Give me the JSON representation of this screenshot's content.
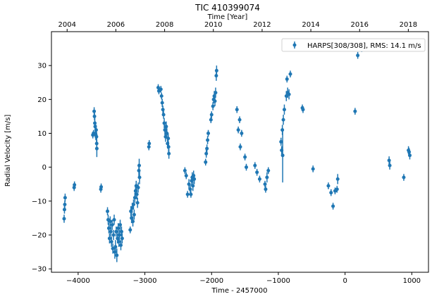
{
  "chart_data": {
    "type": "scatter",
    "title": "TIC 410399074",
    "xlabel": "Time - 2457000",
    "ylabel": "Radial Velocity [m/s]",
    "top_xlabel": "Time [Year]",
    "xlim": [
      -4400,
      1250
    ],
    "ylim": [
      -31,
      40
    ],
    "x_ticks": [
      -4000,
      -3000,
      -2000,
      -1000,
      0,
      1000
    ],
    "x_tick_labels": [
      "−4000",
      "−3000",
      "−2000",
      "−1000",
      "0",
      "1000"
    ],
    "y_ticks": [
      -30,
      -20,
      -10,
      0,
      10,
      20,
      30
    ],
    "y_tick_labels": [
      "−30",
      "−20",
      "−10",
      "0",
      "10",
      "20",
      "30"
    ],
    "top_ticks": [
      -4165,
      -3435,
      -2704,
      -1974,
      -1243,
      -513,
      218,
      948
    ],
    "top_tick_labels": [
      "2004",
      "2006",
      "2008",
      "2010",
      "2012",
      "2014",
      "2016",
      "2018"
    ],
    "legend": {
      "label": "HARPS[308/308], RMS:      14.1 m/s",
      "placement": "top-right"
    },
    "color": "#1f77b4",
    "series": [
      {
        "name": "HARPS[308/308]",
        "points": [
          {
            "x": -4210,
            "y": -15.2,
            "err": 1.2
          },
          {
            "x": -4205,
            "y": -12.5,
            "err": 1.2
          },
          {
            "x": -4200,
            "y": -11,
            "err": 1.2
          },
          {
            "x": -4195,
            "y": -9,
            "err": 1.2
          },
          {
            "x": -4060,
            "y": -6,
            "err": 1
          },
          {
            "x": -4055,
            "y": -5.2,
            "err": 1
          },
          {
            "x": -3780,
            "y": 9.5,
            "err": 1
          },
          {
            "x": -3770,
            "y": 10,
            "err": 1
          },
          {
            "x": -3760,
            "y": 16.5,
            "err": 1.2
          },
          {
            "x": -3755,
            "y": 15,
            "err": 1.2
          },
          {
            "x": -3750,
            "y": 13,
            "err": 1.5
          },
          {
            "x": -3745,
            "y": 12,
            "err": 1.5
          },
          {
            "x": -3740,
            "y": 10,
            "err": 1.5
          },
          {
            "x": -3735,
            "y": 9.5,
            "err": 1.5
          },
          {
            "x": -3730,
            "y": 11,
            "err": 1.5
          },
          {
            "x": -3725,
            "y": 9,
            "err": 2
          },
          {
            "x": -3722,
            "y": 7,
            "err": 2
          },
          {
            "x": -3720,
            "y": 5.5,
            "err": 2.5
          },
          {
            "x": -3660,
            "y": -6.5,
            "err": 1
          },
          {
            "x": -3655,
            "y": -5.8,
            "err": 1
          },
          {
            "x": -3560,
            "y": -13,
            "err": 1.2
          },
          {
            "x": -3550,
            "y": -15.5,
            "err": 1.5
          },
          {
            "x": -3540,
            "y": -18,
            "err": 1.5
          },
          {
            "x": -3530,
            "y": -21,
            "err": 1.5
          },
          {
            "x": -3520,
            "y": -16,
            "err": 1.5
          },
          {
            "x": -3510,
            "y": -19,
            "err": 1.5
          },
          {
            "x": -3500,
            "y": -22,
            "err": 1.5
          },
          {
            "x": -3490,
            "y": -17,
            "err": 1.5
          },
          {
            "x": -3480,
            "y": -24,
            "err": 1.5
          },
          {
            "x": -3470,
            "y": -20,
            "err": 1.5
          },
          {
            "x": -3460,
            "y": -15.5,
            "err": 1.5
          },
          {
            "x": -3450,
            "y": -25,
            "err": 2
          },
          {
            "x": -3440,
            "y": -23.5,
            "err": 2
          },
          {
            "x": -3430,
            "y": -19,
            "err": 1.5
          },
          {
            "x": -3420,
            "y": -26,
            "err": 2
          },
          {
            "x": -3410,
            "y": -21,
            "err": 1.5
          },
          {
            "x": -3400,
            "y": -18,
            "err": 1.5
          },
          {
            "x": -3390,
            "y": -22,
            "err": 1.5
          },
          {
            "x": -3380,
            "y": -20,
            "err": 1.5
          },
          {
            "x": -3370,
            "y": -17,
            "err": 1.5
          },
          {
            "x": -3360,
            "y": -23,
            "err": 1.5
          },
          {
            "x": -3350,
            "y": -19,
            "err": 1.5
          },
          {
            "x": -3340,
            "y": -21,
            "err": 1.5
          },
          {
            "x": -3220,
            "y": -18.5,
            "err": 1
          },
          {
            "x": -3210,
            "y": -13,
            "err": 1.5
          },
          {
            "x": -3200,
            "y": -15,
            "err": 1.5
          },
          {
            "x": -3190,
            "y": -12,
            "err": 1.5
          },
          {
            "x": -3180,
            "y": -16,
            "err": 1.5
          },
          {
            "x": -3170,
            "y": -11,
            "err": 1.5
          },
          {
            "x": -3160,
            "y": -14,
            "err": 1.5
          },
          {
            "x": -3150,
            "y": -9,
            "err": 1.5
          },
          {
            "x": -3140,
            "y": -7,
            "err": 1.5
          },
          {
            "x": -3130,
            "y": -5.5,
            "err": 1.5
          },
          {
            "x": -3120,
            "y": -8,
            "err": 1.5
          },
          {
            "x": -3110,
            "y": -10.5,
            "err": 1.5
          },
          {
            "x": -3100,
            "y": -6,
            "err": 1.5
          },
          {
            "x": -3090,
            "y": -1,
            "err": 2
          },
          {
            "x": -3085,
            "y": 0.5,
            "err": 2
          },
          {
            "x": -3080,
            "y": -3,
            "err": 2
          },
          {
            "x": -2940,
            "y": 6,
            "err": 1
          },
          {
            "x": -2935,
            "y": 7,
            "err": 1
          },
          {
            "x": -2800,
            "y": 23.5,
            "err": 1
          },
          {
            "x": -2790,
            "y": 22.5,
            "err": 1
          },
          {
            "x": -2760,
            "y": 23,
            "err": 1
          },
          {
            "x": -2750,
            "y": 21,
            "err": 1
          },
          {
            "x": -2740,
            "y": 19,
            "err": 1.2
          },
          {
            "x": -2730,
            "y": 17,
            "err": 1.2
          },
          {
            "x": -2720,
            "y": 15.5,
            "err": 1.2
          },
          {
            "x": -2710,
            "y": 13,
            "err": 1.5
          },
          {
            "x": -2700,
            "y": 11,
            "err": 1.5
          },
          {
            "x": -2690,
            "y": 9,
            "err": 1.5
          },
          {
            "x": -2680,
            "y": 12,
            "err": 1.5
          },
          {
            "x": -2670,
            "y": 10,
            "err": 1.5
          },
          {
            "x": -2660,
            "y": 7,
            "err": 1.5
          },
          {
            "x": -2650,
            "y": 8.5,
            "err": 1.5
          },
          {
            "x": -2645,
            "y": 6,
            "err": 1.5
          },
          {
            "x": -2640,
            "y": 4,
            "err": 1.5
          },
          {
            "x": -2400,
            "y": -1,
            "err": 1
          },
          {
            "x": -2380,
            "y": -2.5,
            "err": 1
          },
          {
            "x": -2360,
            "y": -8,
            "err": 1
          },
          {
            "x": -2340,
            "y": -5,
            "err": 1.5
          },
          {
            "x": -2320,
            "y": -6.5,
            "err": 1.5
          },
          {
            "x": -2310,
            "y": -8,
            "err": 1
          },
          {
            "x": -2300,
            "y": -4,
            "err": 1.5
          },
          {
            "x": -2290,
            "y": -3,
            "err": 1.5
          },
          {
            "x": -2280,
            "y": -5.5,
            "err": 1.5
          },
          {
            "x": -2270,
            "y": -2.5,
            "err": 1.5
          },
          {
            "x": -2260,
            "y": -3.5,
            "err": 1.5
          },
          {
            "x": -2090,
            "y": 1.5,
            "err": 1
          },
          {
            "x": -2080,
            "y": 4,
            "err": 1.2
          },
          {
            "x": -2070,
            "y": 5.5,
            "err": 1.2
          },
          {
            "x": -2060,
            "y": 8,
            "err": 1.2
          },
          {
            "x": -2050,
            "y": 10,
            "err": 1
          },
          {
            "x": -2010,
            "y": 14,
            "err": 1
          },
          {
            "x": -2000,
            "y": 15.5,
            "err": 1
          },
          {
            "x": -1980,
            "y": 18,
            "err": 1.2
          },
          {
            "x": -1970,
            "y": 20,
            "err": 1.2
          },
          {
            "x": -1960,
            "y": 21,
            "err": 1.5
          },
          {
            "x": -1950,
            "y": 19.5,
            "err": 1.5
          },
          {
            "x": -1940,
            "y": 22,
            "err": 1.5
          },
          {
            "x": -1930,
            "y": 27,
            "err": 1.5
          },
          {
            "x": -1925,
            "y": 28.5,
            "err": 1.5
          },
          {
            "x": -1620,
            "y": 17,
            "err": 1
          },
          {
            "x": -1600,
            "y": 11,
            "err": 1
          },
          {
            "x": -1580,
            "y": 14,
            "err": 1
          },
          {
            "x": -1570,
            "y": 6,
            "err": 1
          },
          {
            "x": -1550,
            "y": 10,
            "err": 1
          },
          {
            "x": -1500,
            "y": 3,
            "err": 1
          },
          {
            "x": -1480,
            "y": 0,
            "err": 1
          },
          {
            "x": -1350,
            "y": 0.5,
            "err": 1
          },
          {
            "x": -1320,
            "y": -1.5,
            "err": 1
          },
          {
            "x": -1280,
            "y": -3.5,
            "err": 1
          },
          {
            "x": -1200,
            "y": -5,
            "err": 1
          },
          {
            "x": -1190,
            "y": -6.5,
            "err": 1
          },
          {
            "x": -1170,
            "y": -3,
            "err": 1.5
          },
          {
            "x": -1150,
            "y": -1,
            "err": 1
          },
          {
            "x": -960,
            "y": 7.5,
            "err": 1.2
          },
          {
            "x": -950,
            "y": 5,
            "err": 1.2
          },
          {
            "x": -940,
            "y": 11,
            "err": 1.5
          },
          {
            "x": -935,
            "y": 3.5,
            "err": 8
          },
          {
            "x": -925,
            "y": 14,
            "err": 1.5
          },
          {
            "x": -910,
            "y": 17,
            "err": 1.5
          },
          {
            "x": -880,
            "y": 21,
            "err": 1.5
          },
          {
            "x": -870,
            "y": 26,
            "err": 1
          },
          {
            "x": -860,
            "y": 22,
            "err": 1.5
          },
          {
            "x": -840,
            "y": 21.5,
            "err": 1.5
          },
          {
            "x": -820,
            "y": 27.5,
            "err": 1
          },
          {
            "x": -640,
            "y": 17.5,
            "err": 1
          },
          {
            "x": -630,
            "y": 17,
            "err": 1
          },
          {
            "x": -480,
            "y": -0.5,
            "err": 1
          },
          {
            "x": -250,
            "y": -5.5,
            "err": 1
          },
          {
            "x": -210,
            "y": -7.5,
            "err": 1
          },
          {
            "x": -180,
            "y": -11.5,
            "err": 1
          },
          {
            "x": -150,
            "y": -7,
            "err": 1
          },
          {
            "x": -120,
            "y": -6.5,
            "err": 1
          },
          {
            "x": -110,
            "y": -3.5,
            "err": 1.5
          },
          {
            "x": 150,
            "y": 16.5,
            "err": 1
          },
          {
            "x": 190,
            "y": 33,
            "err": 1
          },
          {
            "x": 250,
            "y": 35,
            "err": 1
          },
          {
            "x": 660,
            "y": 2,
            "err": 1.2
          },
          {
            "x": 670,
            "y": 0.5,
            "err": 1.2
          },
          {
            "x": 880,
            "y": -3,
            "err": 1
          },
          {
            "x": 950,
            "y": 5,
            "err": 1.2
          },
          {
            "x": 960,
            "y": 4.5,
            "err": 1.2
          },
          {
            "x": 970,
            "y": 3.5,
            "err": 1.2
          }
        ]
      }
    ]
  }
}
